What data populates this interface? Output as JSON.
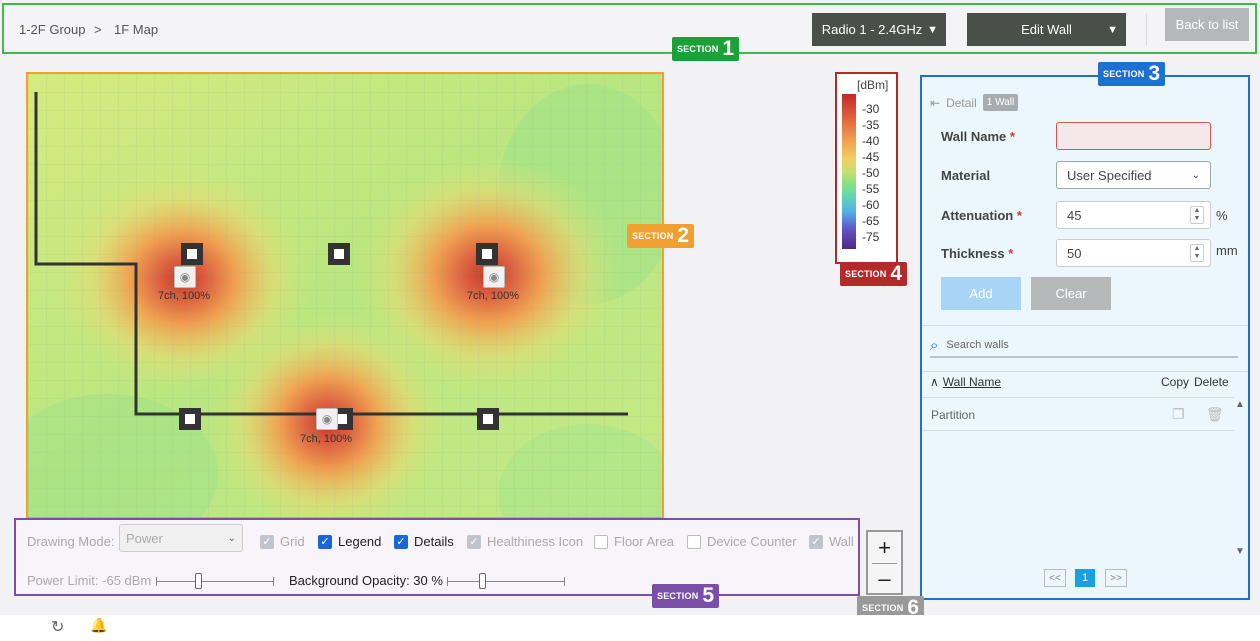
{
  "breadcrumb": {
    "group": "1-2F Group",
    "separator": ">",
    "map": "1F Map"
  },
  "header": {
    "radio_select": "Radio 1 - 2.4GHz",
    "mode_select": "Edit Wall",
    "back_label": "Back to list"
  },
  "sections": {
    "s1": {
      "label": "SECTION",
      "num": "1"
    },
    "s2": {
      "label": "SECTION",
      "num": "2"
    },
    "s3": {
      "label": "SECTION",
      "num": "3"
    },
    "s4": {
      "label": "SECTION",
      "num": "4"
    },
    "s5": {
      "label": "SECTION",
      "num": "5"
    },
    "s6": {
      "label": "SECTION",
      "num": "6"
    }
  },
  "map": {
    "aps": [
      {
        "label": "7ch, 100%"
      },
      {
        "label": "7ch, 100%"
      },
      {
        "label": "7ch, 100%"
      }
    ]
  },
  "legend": {
    "unit": "[dBm]",
    "values": [
      "-30",
      "-35",
      "-40",
      "-45",
      "-50",
      "-55",
      "-60",
      "-65",
      "-75"
    ]
  },
  "panel": {
    "detail_label": "Detail",
    "count_badge": "1 Wall",
    "wall_name_label": "Wall Name",
    "wall_name_value": "",
    "material_label": "Material",
    "material_value": "User Specified",
    "attenuation_label": "Attenuation",
    "attenuation_value": "45",
    "attenuation_unit": "%",
    "thickness_label": "Thickness",
    "thickness_value": "50",
    "thickness_unit": "mm",
    "add_label": "Add",
    "clear_label": "Clear",
    "search_placeholder": "Search walls",
    "col_name": "Wall Name",
    "col_copy": "Copy",
    "col_delete": "Delete",
    "rows": [
      {
        "name": "Partition"
      }
    ],
    "pager": {
      "prev": "<<",
      "page": "1",
      "next": ">>"
    }
  },
  "toolbar": {
    "drawing_mode_label": "Drawing Mode:",
    "drawing_mode_value": "Power",
    "grid": "Grid",
    "legend": "Legend",
    "details": "Details",
    "healthiness": "Healthiness Icon",
    "floor_area": "Floor Area",
    "device_counter": "Device Counter",
    "wall": "Wall",
    "power_limit": "Power Limit: -65 dBm",
    "bg_opacity": "Background Opacity: 30 %",
    "power_limit_level": 0.36,
    "bg_opacity_level": 0.3
  },
  "zoom": {
    "in": "+",
    "out": "–"
  },
  "colors": {
    "s1": "#19a23a",
    "s2": "#f0a030",
    "s3": "#1f6fd1",
    "s4": "#b22a2a",
    "s5": "#7a4fa8",
    "s6": "#999999"
  }
}
